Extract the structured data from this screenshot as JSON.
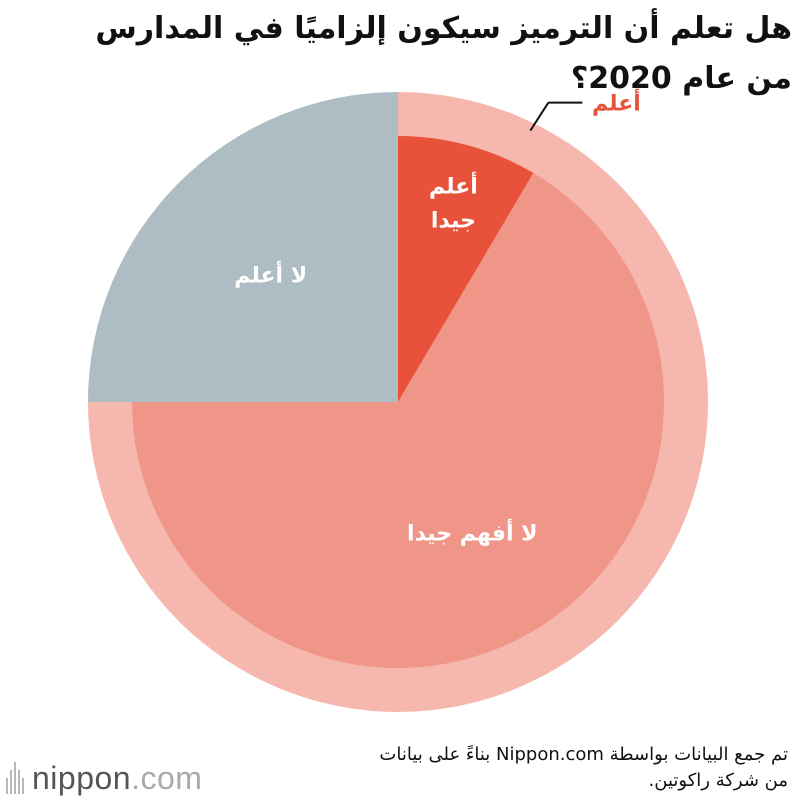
{
  "chart_data": {
    "type": "pie",
    "title": "هل تعلم أن الترميز سيكون إلزاميًا في المدارس من عام 2020؟",
    "slices": [
      {
        "label": "أعلم جيدا",
        "value": 8.5,
        "color": "#e8523a"
      },
      {
        "label": "لا أفهم جيدا",
        "value": 66.5,
        "color": "#f09688"
      },
      {
        "label": "لا أعلم",
        "value": 25.0,
        "color": "#aebdc4"
      }
    ],
    "ring": {
      "label": "أعلم",
      "value": 75.0,
      "color": "#f6b8ae",
      "label_color": "#e8523a"
    },
    "label_color": "#ffffff"
  },
  "source": "تم جمع البيانات بواسطة Nippon.com بناءً على بيانات من شركة راكوتين.",
  "logo": {
    "name": "nippon",
    "dot": ".",
    "tld": "com"
  }
}
